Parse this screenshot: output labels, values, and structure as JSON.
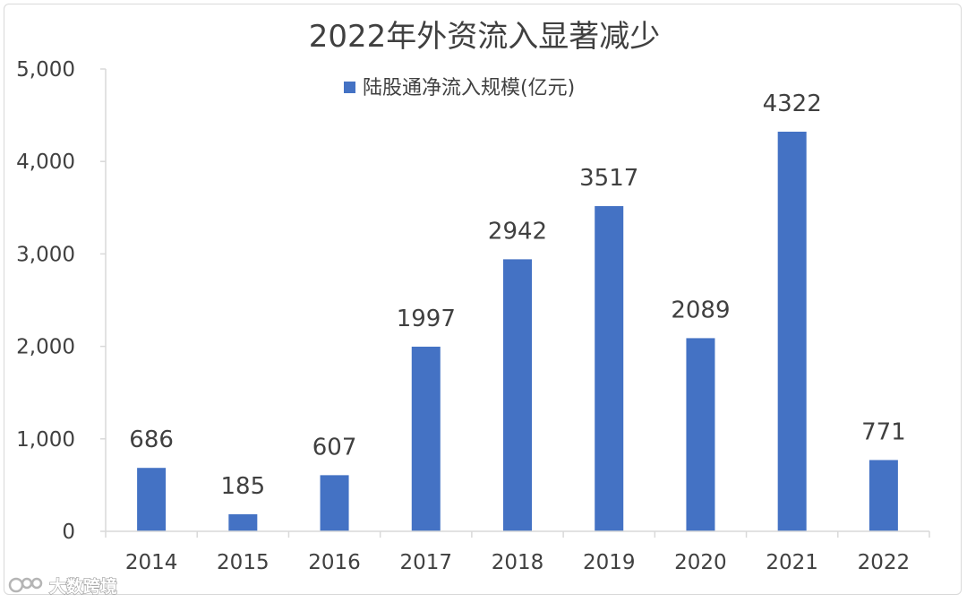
{
  "chart_data": {
    "type": "bar",
    "title": "2022年外资流入显著减少",
    "categories": [
      "2014",
      "2015",
      "2016",
      "2017",
      "2018",
      "2019",
      "2020",
      "2021",
      "2022"
    ],
    "series": [
      {
        "name": "陆股通净流入规模(亿元)",
        "values": [
          686,
          185,
          607,
          1997,
          2942,
          3517,
          2089,
          4322,
          771
        ],
        "color": "#4472c4"
      }
    ],
    "data_labels": [
      "686",
      "185",
      "607",
      "1997",
      "2942",
      "3517",
      "2089",
      "4322",
      "771"
    ],
    "y_ticks": [
      0,
      1000,
      2000,
      3000,
      4000,
      5000
    ],
    "y_tick_labels": [
      "0",
      "1,000",
      "2,000",
      "3,000",
      "4,000",
      "5,000"
    ],
    "ylim": [
      0,
      5000
    ],
    "xlabel": "",
    "ylabel": "",
    "grid": false,
    "legend_position": "top-center"
  },
  "watermark": {
    "text": "大数跨境",
    "logo_text": "1CO"
  },
  "colors": {
    "bar": "#4472c4",
    "axis": "#d9d9d9",
    "text": "#404040"
  }
}
